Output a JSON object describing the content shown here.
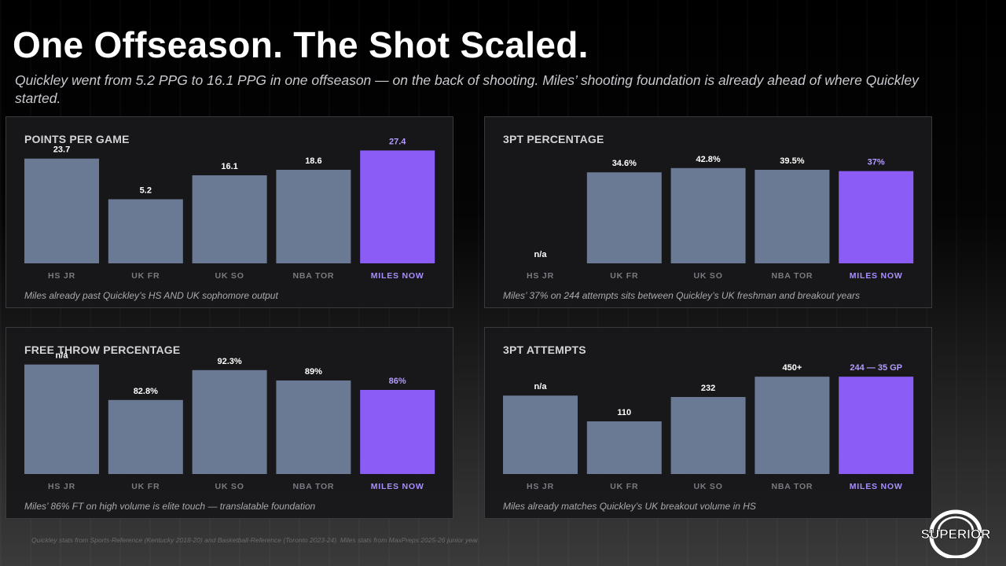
{
  "title": "One Offseason. The Shot Scaled.",
  "subtitle": "Quickley went from 5.2 PPG to 16.1 PPG in one offseason — on the back of shooting. Miles’ shooting foundation is already ahead of where Quickley started.",
  "colors": {
    "bar": "#6a7a94",
    "highlight": "#8b5cf6"
  },
  "chart_data": [
    {
      "type": "bar",
      "title": "POINTS PER GAME",
      "categories": [
        "HS JR",
        "UK FR",
        "UK SO",
        "NBA TOR",
        "MILES NOW"
      ],
      "values": [
        23.7,
        5.2,
        16.1,
        18.6,
        27.4
      ],
      "labels": [
        "23.7",
        "5.2",
        "16.1",
        "18.6",
        "27.4"
      ],
      "highlight_index": 4,
      "caption": "Miles already past Quickley’s HS AND UK sophomore output"
    },
    {
      "type": "bar",
      "title": "3PT PERCENTAGE",
      "categories": [
        "HS JR",
        "UK FR",
        "UK SO",
        "NBA TOR",
        "MILES NOW"
      ],
      "values": [
        null,
        34.6,
        42.8,
        39.5,
        37
      ],
      "labels": [
        "n/a",
        "34.6%",
        "42.8%",
        "39.5%",
        "37%"
      ],
      "highlight_index": 4,
      "caption": "Miles’ 37% on 244 attempts sits between Quickley’s UK freshman and breakout years"
    },
    {
      "type": "bar",
      "title": "FREE THROW PERCENTAGE",
      "categories": [
        "HS JR",
        "UK FR",
        "UK SO",
        "NBA TOR",
        "MILES NOW"
      ],
      "values": [
        null,
        82.8,
        92.3,
        89,
        86
      ],
      "labels": [
        "n/a",
        "82.8%",
        "92.3%",
        "89%",
        "86%"
      ],
      "highlight_index": 4,
      "caption": "Miles’ 86% FT on high volume is elite touch — translatable foundation"
    },
    {
      "type": "bar",
      "title": "3PT ATTEMPTS",
      "categories": [
        "HS JR",
        "UK FR",
        "UK SO",
        "NBA TOR",
        "MILES NOW"
      ],
      "values": [
        null,
        110,
        232,
        450,
        244
      ],
      "labels": [
        "n/a",
        "110",
        "232",
        "450+",
        "244 — 35 GP"
      ],
      "highlight_index": 4,
      "caption": "Miles already matches Quickley’s UK breakout volume in HS"
    }
  ],
  "footnote": "Quickley stats from Sports-Reference (Kentucky 2018-20) and Basketball-Reference (Toronto 2023-24). Miles stats from MaxPreps 2025-26 junior year.",
  "logo": {
    "text": "SUPERIOR",
    "icon": "ring-logo-icon"
  }
}
